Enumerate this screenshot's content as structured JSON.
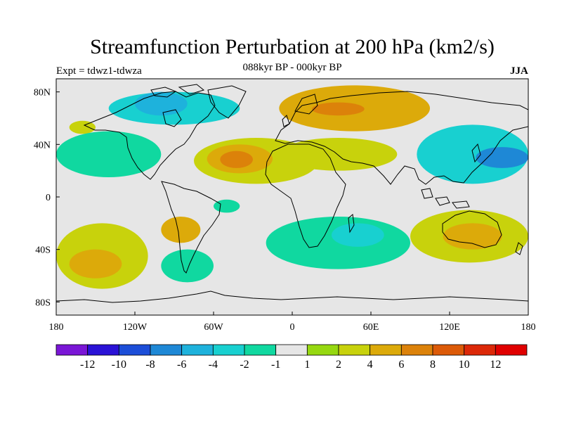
{
  "header": {
    "title": "Streamfunction Perturbation at 200 hPa (km2/s)",
    "subtitle": "088kyr BP - 000kyr BP",
    "experiment": "Expt = tdwz1-tdwza",
    "season": "JJA"
  },
  "map": {
    "projection": "cylindrical-equidistant",
    "lon_range": [
      -180,
      180
    ],
    "lat_range": [
      -90,
      90
    ],
    "background_color": "#e6e6e6",
    "coastline_color": "#000000",
    "x_tick_labels": [
      "180",
      "120W",
      "60W",
      "0",
      "60E",
      "120E",
      "180"
    ],
    "y_tick_labels": [
      "80N",
      "40N",
      "0",
      "40S",
      "80S"
    ],
    "features": [
      {
        "name": "north-america-high-lat-negative",
        "level_index": 5,
        "lon": [
          -140,
          -40
        ],
        "lat": [
          55,
          80
        ]
      },
      {
        "name": "north-america-core-negative",
        "level_index": 4,
        "lon": [
          -120,
          -80
        ],
        "lat": [
          62,
          80
        ]
      },
      {
        "name": "nw-pacific-positive",
        "level_index": 9,
        "lon": [
          -170,
          -150
        ],
        "lat": [
          48,
          58
        ]
      },
      {
        "name": "east-pacific-negative",
        "level_index": 6,
        "lon": [
          -180,
          -100
        ],
        "lat": [
          15,
          50
        ]
      },
      {
        "name": "atlantic-positive-outer",
        "level_index": 9,
        "lon": [
          -75,
          20
        ],
        "lat": [
          10,
          45
        ]
      },
      {
        "name": "atlantic-positive-mid",
        "level_index": 10,
        "lon": [
          -65,
          -15
        ],
        "lat": [
          18,
          40
        ]
      },
      {
        "name": "atlantic-positive-inner",
        "level_index": 11,
        "lon": [
          -55,
          -30
        ],
        "lat": [
          22,
          35
        ]
      },
      {
        "name": "eurasia-positive",
        "level_index": 10,
        "lon": [
          -10,
          105
        ],
        "lat": [
          50,
          85
        ]
      },
      {
        "name": "arctic-positive-core",
        "level_index": 11,
        "lon": [
          15,
          55
        ],
        "lat": [
          62,
          72
        ]
      },
      {
        "name": "north-africa-positive",
        "level_index": 9,
        "lon": [
          -10,
          80
        ],
        "lat": [
          20,
          45
        ]
      },
      {
        "name": "west-pacific-negative",
        "level_index": 5,
        "lon": [
          95,
          180
        ],
        "lat": [
          10,
          55
        ]
      },
      {
        "name": "west-pacific-negative-core",
        "level_index": 3,
        "lon": [
          140,
          180
        ],
        "lat": [
          22,
          38
        ]
      },
      {
        "name": "south-atlantic-negative",
        "level_index": 6,
        "lon": [
          -20,
          90
        ],
        "lat": [
          -55,
          -15
        ]
      },
      {
        "name": "south-indian-negative-core",
        "level_index": 5,
        "lon": [
          30,
          70
        ],
        "lat": [
          -38,
          -20
        ]
      },
      {
        "name": "south-pacific-positive",
        "level_index": 9,
        "lon": [
          -180,
          -110
        ],
        "lat": [
          -70,
          -20
        ]
      },
      {
        "name": "south-pacific-positive-core",
        "level_index": 10,
        "lon": [
          -170,
          -130
        ],
        "lat": [
          -62,
          -40
        ]
      },
      {
        "name": "australia-positive",
        "level_index": 9,
        "lon": [
          90,
          180
        ],
        "lat": [
          -50,
          -10
        ]
      },
      {
        "name": "australia-positive-core",
        "level_index": 10,
        "lon": [
          115,
          160
        ],
        "lat": [
          -40,
          -20
        ]
      },
      {
        "name": "south-america-positive",
        "level_index": 10,
        "lon": [
          -100,
          -70
        ],
        "lat": [
          -35,
          -15
        ]
      },
      {
        "name": "southern-ocean-negative",
        "level_index": 6,
        "lon": [
          -100,
          -60
        ],
        "lat": [
          -65,
          -40
        ]
      },
      {
        "name": "tropical-atlantic-negative",
        "level_index": 6,
        "lon": [
          -60,
          -40
        ],
        "lat": [
          -12,
          -2
        ]
      },
      {
        "name": "central-pacific-negative",
        "level_index": 6,
        "lon": [
          -130,
          -110
        ],
        "lat": [
          18,
          28
        ]
      }
    ]
  },
  "colorbar": {
    "colors": [
      "#7a16d6",
      "#2a12d6",
      "#1c4ed8",
      "#1e88d6",
      "#1eb2dc",
      "#18d0d0",
      "#10d8a0",
      "#e6e6e6",
      "#96d810",
      "#c8d20c",
      "#dcaa0a",
      "#dc820a",
      "#dc5a08",
      "#dc2808",
      "#e00000"
    ],
    "labels": [
      "-12",
      "-10",
      "-8",
      "-6",
      "-4",
      "-2",
      "-1",
      "1",
      "2",
      "4",
      "6",
      "8",
      "10",
      "12"
    ]
  }
}
